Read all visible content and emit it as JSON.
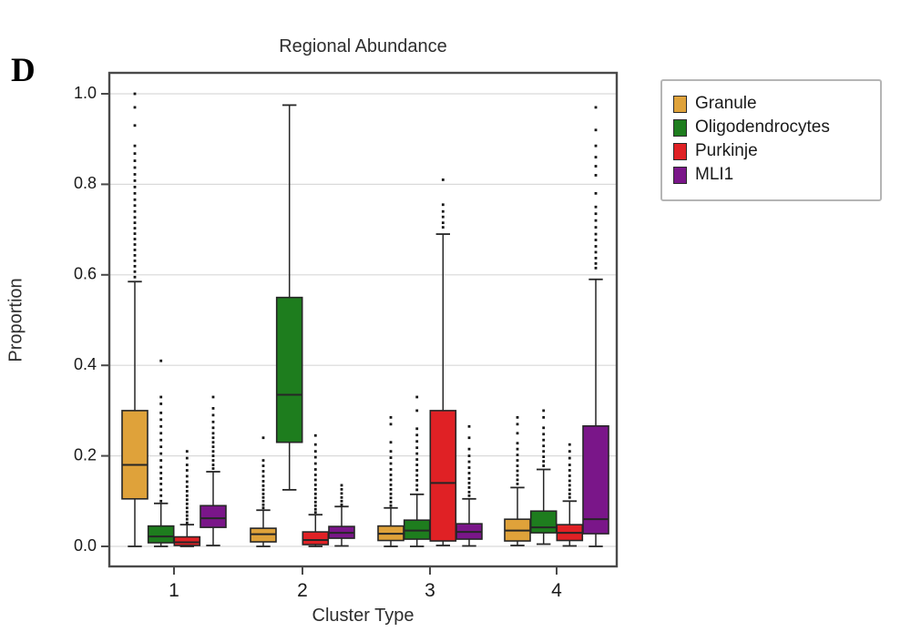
{
  "panel": {
    "label": "D"
  },
  "chart_data": {
    "type": "boxplot",
    "title": "Regional Abundance",
    "xlabel": "Cluster Type",
    "ylabel": "Proportion",
    "categories": [
      "1",
      "2",
      "3",
      "4"
    ],
    "y_ticks": [
      0.0,
      0.2,
      0.4,
      0.6,
      0.8,
      1.0
    ],
    "ylim": [
      -0.045,
      1.05
    ],
    "grid": "horizontal",
    "legend_position": "outside-top-right",
    "colors": {
      "frame": "#4a4a4a",
      "gridline": "#d9d9d9",
      "box_edge": "#262626",
      "outlier": "#141414"
    },
    "series": [
      {
        "name": "Granule",
        "color": "#dfa23a",
        "boxes": [
          {
            "cluster": "1",
            "whislo": 0.0,
            "q1": 0.105,
            "med": 0.18,
            "q3": 0.3,
            "whishi": 0.585,
            "outliers": [
              0.595,
              0.607,
              0.619,
              0.631,
              0.643,
              0.655,
              0.667,
              0.679,
              0.691,
              0.703,
              0.715,
              0.727,
              0.74,
              0.753,
              0.766,
              0.78,
              0.794,
              0.808,
              0.822,
              0.837,
              0.852,
              0.868,
              0.885,
              0.93,
              0.97,
              1.0
            ]
          },
          {
            "cluster": "2",
            "whislo": 0.0,
            "q1": 0.01,
            "med": 0.027,
            "q3": 0.04,
            "whishi": 0.08,
            "outliers": [
              0.085,
              0.092,
              0.1,
              0.108,
              0.116,
              0.125,
              0.134,
              0.144,
              0.155,
              0.166,
              0.178,
              0.19,
              0.24
            ]
          },
          {
            "cluster": "3",
            "whislo": 0.0,
            "q1": 0.013,
            "med": 0.028,
            "q3": 0.045,
            "whishi": 0.085,
            "outliers": [
              0.09,
              0.098,
              0.107,
              0.116,
              0.126,
              0.136,
              0.147,
              0.158,
              0.17,
              0.183,
              0.196,
              0.21,
              0.23,
              0.27,
              0.285
            ]
          },
          {
            "cluster": "4",
            "whislo": 0.002,
            "q1": 0.012,
            "med": 0.035,
            "q3": 0.06,
            "whishi": 0.13,
            "outliers": [
              0.138,
              0.147,
              0.157,
              0.167,
              0.178,
              0.19,
              0.202,
              0.215,
              0.228,
              0.25,
              0.27,
              0.285
            ]
          }
        ]
      },
      {
        "name": "Oligodendrocytes",
        "color": "#1e7d1e",
        "boxes": [
          {
            "cluster": "1",
            "whislo": 0.0,
            "q1": 0.008,
            "med": 0.022,
            "q3": 0.045,
            "whishi": 0.095,
            "outliers": [
              0.1,
              0.112,
              0.125,
              0.138,
              0.15,
              0.162,
              0.175,
              0.19,
              0.205,
              0.22,
              0.235,
              0.25,
              0.265,
              0.28,
              0.295,
              0.315,
              0.33,
              0.41
            ]
          },
          {
            "cluster": "2",
            "whislo": 0.125,
            "q1": 0.23,
            "med": 0.335,
            "q3": 0.55,
            "whishi": 0.975,
            "outliers": []
          },
          {
            "cluster": "3",
            "whislo": 0.0,
            "q1": 0.016,
            "med": 0.035,
            "q3": 0.058,
            "whishi": 0.115,
            "outliers": [
              0.125,
              0.135,
              0.146,
              0.157,
              0.168,
              0.18,
              0.192,
              0.205,
              0.218,
              0.232,
              0.246,
              0.26,
              0.3,
              0.33
            ]
          },
          {
            "cluster": "4",
            "whislo": 0.005,
            "q1": 0.03,
            "med": 0.042,
            "q3": 0.078,
            "whishi": 0.17,
            "outliers": [
              0.178,
              0.188,
              0.198,
              0.21,
              0.222,
              0.235,
              0.248,
              0.262,
              0.285,
              0.3
            ]
          }
        ]
      },
      {
        "name": "Purkinje",
        "color": "#e02125",
        "boxes": [
          {
            "cluster": "1",
            "whislo": 0.0,
            "q1": 0.002,
            "med": 0.009,
            "q3": 0.021,
            "whishi": 0.048,
            "outliers": [
              0.052,
              0.06,
              0.068,
              0.076,
              0.085,
              0.094,
              0.103,
              0.112,
              0.122,
              0.132,
              0.143,
              0.155,
              0.168,
              0.18,
              0.195,
              0.21
            ]
          },
          {
            "cluster": "2",
            "whislo": 0.0,
            "q1": 0.004,
            "med": 0.014,
            "q3": 0.032,
            "whishi": 0.07,
            "outliers": [
              0.075,
              0.082,
              0.09,
              0.098,
              0.107,
              0.116,
              0.126,
              0.136,
              0.147,
              0.158,
              0.17,
              0.183,
              0.197,
              0.21,
              0.225,
              0.245
            ]
          },
          {
            "cluster": "3",
            "whislo": 0.002,
            "q1": 0.012,
            "med": 0.14,
            "q3": 0.3,
            "whishi": 0.69,
            "outliers": [
              0.705,
              0.715,
              0.728,
              0.74,
              0.755,
              0.81
            ]
          },
          {
            "cluster": "4",
            "whislo": 0.001,
            "q1": 0.013,
            "med": 0.03,
            "q3": 0.048,
            "whishi": 0.1,
            "outliers": [
              0.108,
              0.116,
              0.125,
              0.135,
              0.145,
              0.156,
              0.168,
              0.18,
              0.195,
              0.21,
              0.225
            ]
          }
        ]
      },
      {
        "name": "MLI1",
        "color": "#7a1689",
        "boxes": [
          {
            "cluster": "1",
            "whislo": 0.002,
            "q1": 0.042,
            "med": 0.062,
            "q3": 0.09,
            "whishi": 0.165,
            "outliers": [
              0.172,
              0.18,
              0.19,
              0.2,
              0.21,
              0.22,
              0.23,
              0.24,
              0.25,
              0.262,
              0.275,
              0.29,
              0.305,
              0.33
            ]
          },
          {
            "cluster": "2",
            "whislo": 0.001,
            "q1": 0.018,
            "med": 0.03,
            "q3": 0.044,
            "whishi": 0.088,
            "outliers": [
              0.092,
              0.1,
              0.108,
              0.117,
              0.126,
              0.135
            ]
          },
          {
            "cluster": "3",
            "whislo": 0.001,
            "q1": 0.016,
            "med": 0.032,
            "q3": 0.05,
            "whishi": 0.105,
            "outliers": [
              0.112,
              0.12,
              0.13,
              0.14,
              0.15,
              0.162,
              0.174,
              0.187,
              0.2,
              0.215,
              0.24,
              0.265
            ]
          },
          {
            "cluster": "4",
            "whislo": 0.0,
            "q1": 0.028,
            "med": 0.06,
            "q3": 0.266,
            "whishi": 0.59,
            "outliers": [
              0.615,
              0.625,
              0.637,
              0.65,
              0.663,
              0.677,
              0.69,
              0.705,
              0.72,
              0.735,
              0.75,
              0.78,
              0.82,
              0.84,
              0.86,
              0.885,
              0.92,
              0.97
            ]
          }
        ]
      }
    ]
  }
}
